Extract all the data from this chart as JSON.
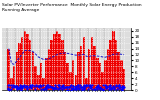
{
  "title": "Solar PV/Inverter Performance  Monthly Solar Energy Production  Running Average",
  "bar_values": [
    14,
    4,
    8,
    13,
    16,
    18,
    20,
    19,
    17,
    13,
    8,
    5,
    9,
    4,
    11,
    14,
    17,
    19,
    20,
    19,
    17,
    13,
    9,
    6,
    10,
    5,
    13,
    15,
    18,
    4,
    14,
    18,
    15,
    11,
    9,
    6,
    10,
    14,
    17,
    20,
    17,
    13,
    10,
    7
  ],
  "running_avg": [
    14.0,
    9.0,
    8.7,
    9.8,
    11.0,
    12.2,
    13.4,
    13.4,
    13.3,
    13.0,
    12.2,
    11.2,
    10.8,
    10.3,
    10.4,
    10.6,
    11.0,
    11.5,
    12.0,
    12.3,
    12.5,
    12.5,
    12.4,
    12.2,
    12.0,
    11.8,
    11.8,
    11.9,
    12.1,
    11.4,
    11.4,
    11.6,
    11.6,
    11.5,
    11.4,
    11.2,
    11.1,
    11.4,
    11.7,
    12.1,
    12.2,
    12.2,
    12.1,
    12.0
  ],
  "bar_color": "#EE0000",
  "avg_color": "#1111CC",
  "plot_bg_color": "#DDDDDD",
  "fig_bg_color": "#FFFFFF",
  "grid_color": "#FFFFFF",
  "ylim": [
    0,
    21
  ],
  "ytick_step": 2,
  "small_dot_color": "#0000FF",
  "title_fontsize": 3.2,
  "n_bars": 44
}
